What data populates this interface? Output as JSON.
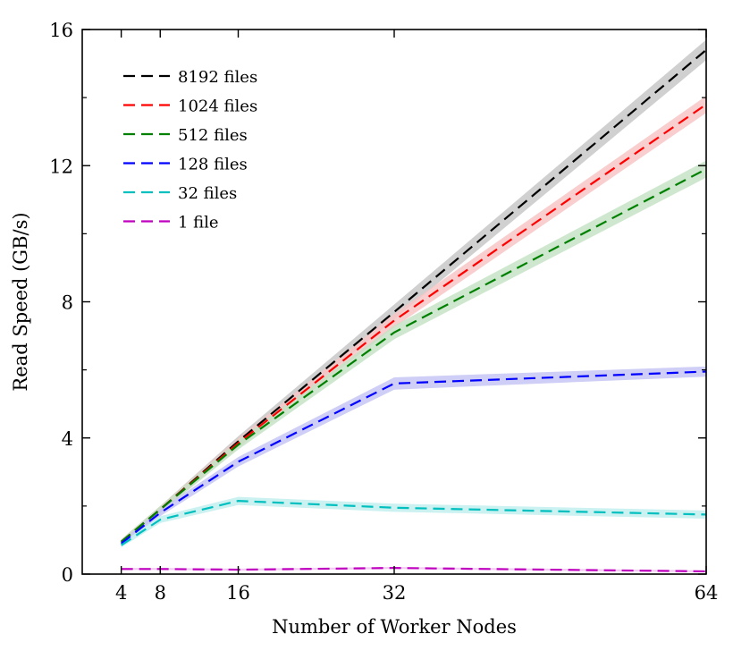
{
  "chart_data": {
    "type": "line",
    "title": "",
    "xlabel": "Number of Worker Nodes",
    "ylabel": "Read Speed (GB/s)",
    "xlim": [
      0,
      64
    ],
    "ylim": [
      0,
      16
    ],
    "xticks": [
      4,
      8,
      16,
      32,
      64
    ],
    "yticks": [
      0,
      4,
      8,
      12,
      16
    ],
    "x": [
      4,
      8,
      16,
      32,
      64
    ],
    "legend_position": "top-left",
    "grid": false,
    "series": [
      {
        "name": "8192 files",
        "color": "#000000",
        "band_color": "#c8c8c8",
        "values": [
          0.95,
          1.9,
          3.9,
          7.7,
          15.4
        ],
        "band": [
          0.07,
          0.1,
          0.15,
          0.22,
          0.3
        ]
      },
      {
        "name": "1024 files",
        "color": "#ff0000",
        "band_color": "#f7c6c6",
        "values": [
          0.95,
          1.9,
          3.85,
          7.45,
          13.8
        ],
        "band": [
          0.07,
          0.1,
          0.14,
          0.2,
          0.25
        ]
      },
      {
        "name": "512 files",
        "color": "#008000",
        "band_color": "#c5e3c5",
        "values": [
          0.95,
          1.9,
          3.8,
          7.1,
          11.9
        ],
        "band": [
          0.07,
          0.1,
          0.14,
          0.2,
          0.25
        ]
      },
      {
        "name": "128 files",
        "color": "#0000ff",
        "band_color": "#c6c6f4",
        "values": [
          0.9,
          1.8,
          3.3,
          5.6,
          5.95
        ],
        "band": [
          0.07,
          0.1,
          0.14,
          0.18,
          0.15
        ]
      },
      {
        "name": "32 files",
        "color": "#00bfbf",
        "band_color": "#c2eeee",
        "values": [
          0.85,
          1.6,
          2.15,
          1.95,
          1.75
        ],
        "band": [
          0.07,
          0.1,
          0.12,
          0.12,
          0.12
        ]
      },
      {
        "name": "1 file",
        "color": "#bf00bf",
        "band_color": "#eec2ee",
        "values": [
          0.15,
          0.15,
          0.13,
          0.18,
          0.08
        ],
        "band": [
          0.03,
          0.03,
          0.03,
          0.03,
          0.03
        ]
      }
    ]
  }
}
